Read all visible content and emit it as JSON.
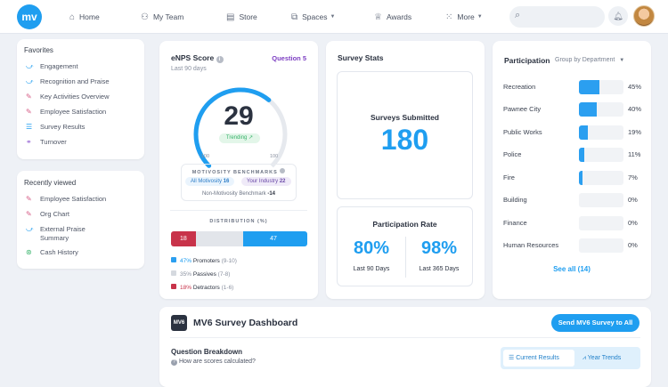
{
  "nav": {
    "logo": "mv",
    "items": [
      {
        "label": "Home"
      },
      {
        "label": "My Team"
      },
      {
        "label": "Store"
      },
      {
        "label": "Spaces"
      },
      {
        "label": "Awards"
      },
      {
        "label": "More"
      }
    ]
  },
  "favorites": {
    "title": "Favorites",
    "items": [
      {
        "label": "Engagement"
      },
      {
        "label": "Recognition and Praise"
      },
      {
        "label": "Key Activities Overview"
      },
      {
        "label": "Employee Satisfaction"
      },
      {
        "label": "Survey Results"
      },
      {
        "label": "Turnover"
      }
    ]
  },
  "recent": {
    "title": "Recently viewed",
    "items": [
      {
        "label": "Employee Satisfaction"
      },
      {
        "label": "Org Chart"
      },
      {
        "label": "External Praise Summary"
      },
      {
        "label": "Cash History"
      }
    ]
  },
  "enps": {
    "title": "eNPS Score",
    "question": "Question 5",
    "period": "Last 90 days",
    "score": "29",
    "score_value": 29,
    "trend": "Trending",
    "min": "-100",
    "max": "100",
    "benchmarks_title": "MOTIVOSITY BENCHMARKS",
    "bench_all": "All Motivosity",
    "bench_all_val": "16",
    "bench_ind": "Your Industry",
    "bench_ind_val": "22",
    "bench_non": "Non-Motivosity Benchmark",
    "bench_non_val": "-14",
    "dist_title": "DISTRIBUTION (%)",
    "dist": {
      "detractors": 18,
      "passives": 35,
      "promoters": 47
    },
    "dist_labels": {
      "detractors": "18",
      "promoters": "47"
    },
    "legend": [
      {
        "pct": "47%",
        "label": "Promoters",
        "range": "(9-10)",
        "color": "#2b9ff0"
      },
      {
        "pct": "35%",
        "label": "Passives",
        "range": "(7-8)",
        "color": "#d5d9df"
      },
      {
        "pct": "18%",
        "label": "Detractors",
        "range": "(1-6)",
        "color": "#c8334a"
      }
    ]
  },
  "stats": {
    "title": "Survey Stats",
    "submitted_label": "Surveys Submitted",
    "submitted_value": "180",
    "rate_title": "Participation Rate",
    "rate_90": "80%",
    "rate_90_label": "Last 90 Days",
    "rate_365": "98%",
    "rate_365_label": "Last 365 Days"
  },
  "participation": {
    "title": "Participation",
    "group_by": "Group by Department",
    "rows": [
      {
        "name": "Recreation",
        "pct": "45%",
        "value": 45
      },
      {
        "name": "Pawnee City",
        "pct": "40%",
        "value": 40
      },
      {
        "name": "Public Works",
        "pct": "19%",
        "value": 19
      },
      {
        "name": "Police",
        "pct": "11%",
        "value": 11
      },
      {
        "name": "Fire",
        "pct": "7%",
        "value": 7
      },
      {
        "name": "Building",
        "pct": "0%",
        "value": 0
      },
      {
        "name": "Finance",
        "pct": "0%",
        "value": 0
      },
      {
        "name": "Human Resources",
        "pct": "0%",
        "value": 0
      }
    ],
    "see_all": "See all (14)"
  },
  "dashboard": {
    "logo": "MV6",
    "title": "MV6 Survey Dashboard",
    "send_button": "Send MV6 Survey to All",
    "breakdown_title": "Question Breakdown",
    "breakdown_help": "How are scores calculated?",
    "tab_current": "Current Results",
    "tab_trends": "Year Trends"
  },
  "colors": {
    "accent": "#1f9ef0",
    "detractor": "#c8334a",
    "passive": "#e2e5ea",
    "promoter": "#1f9ef0"
  }
}
